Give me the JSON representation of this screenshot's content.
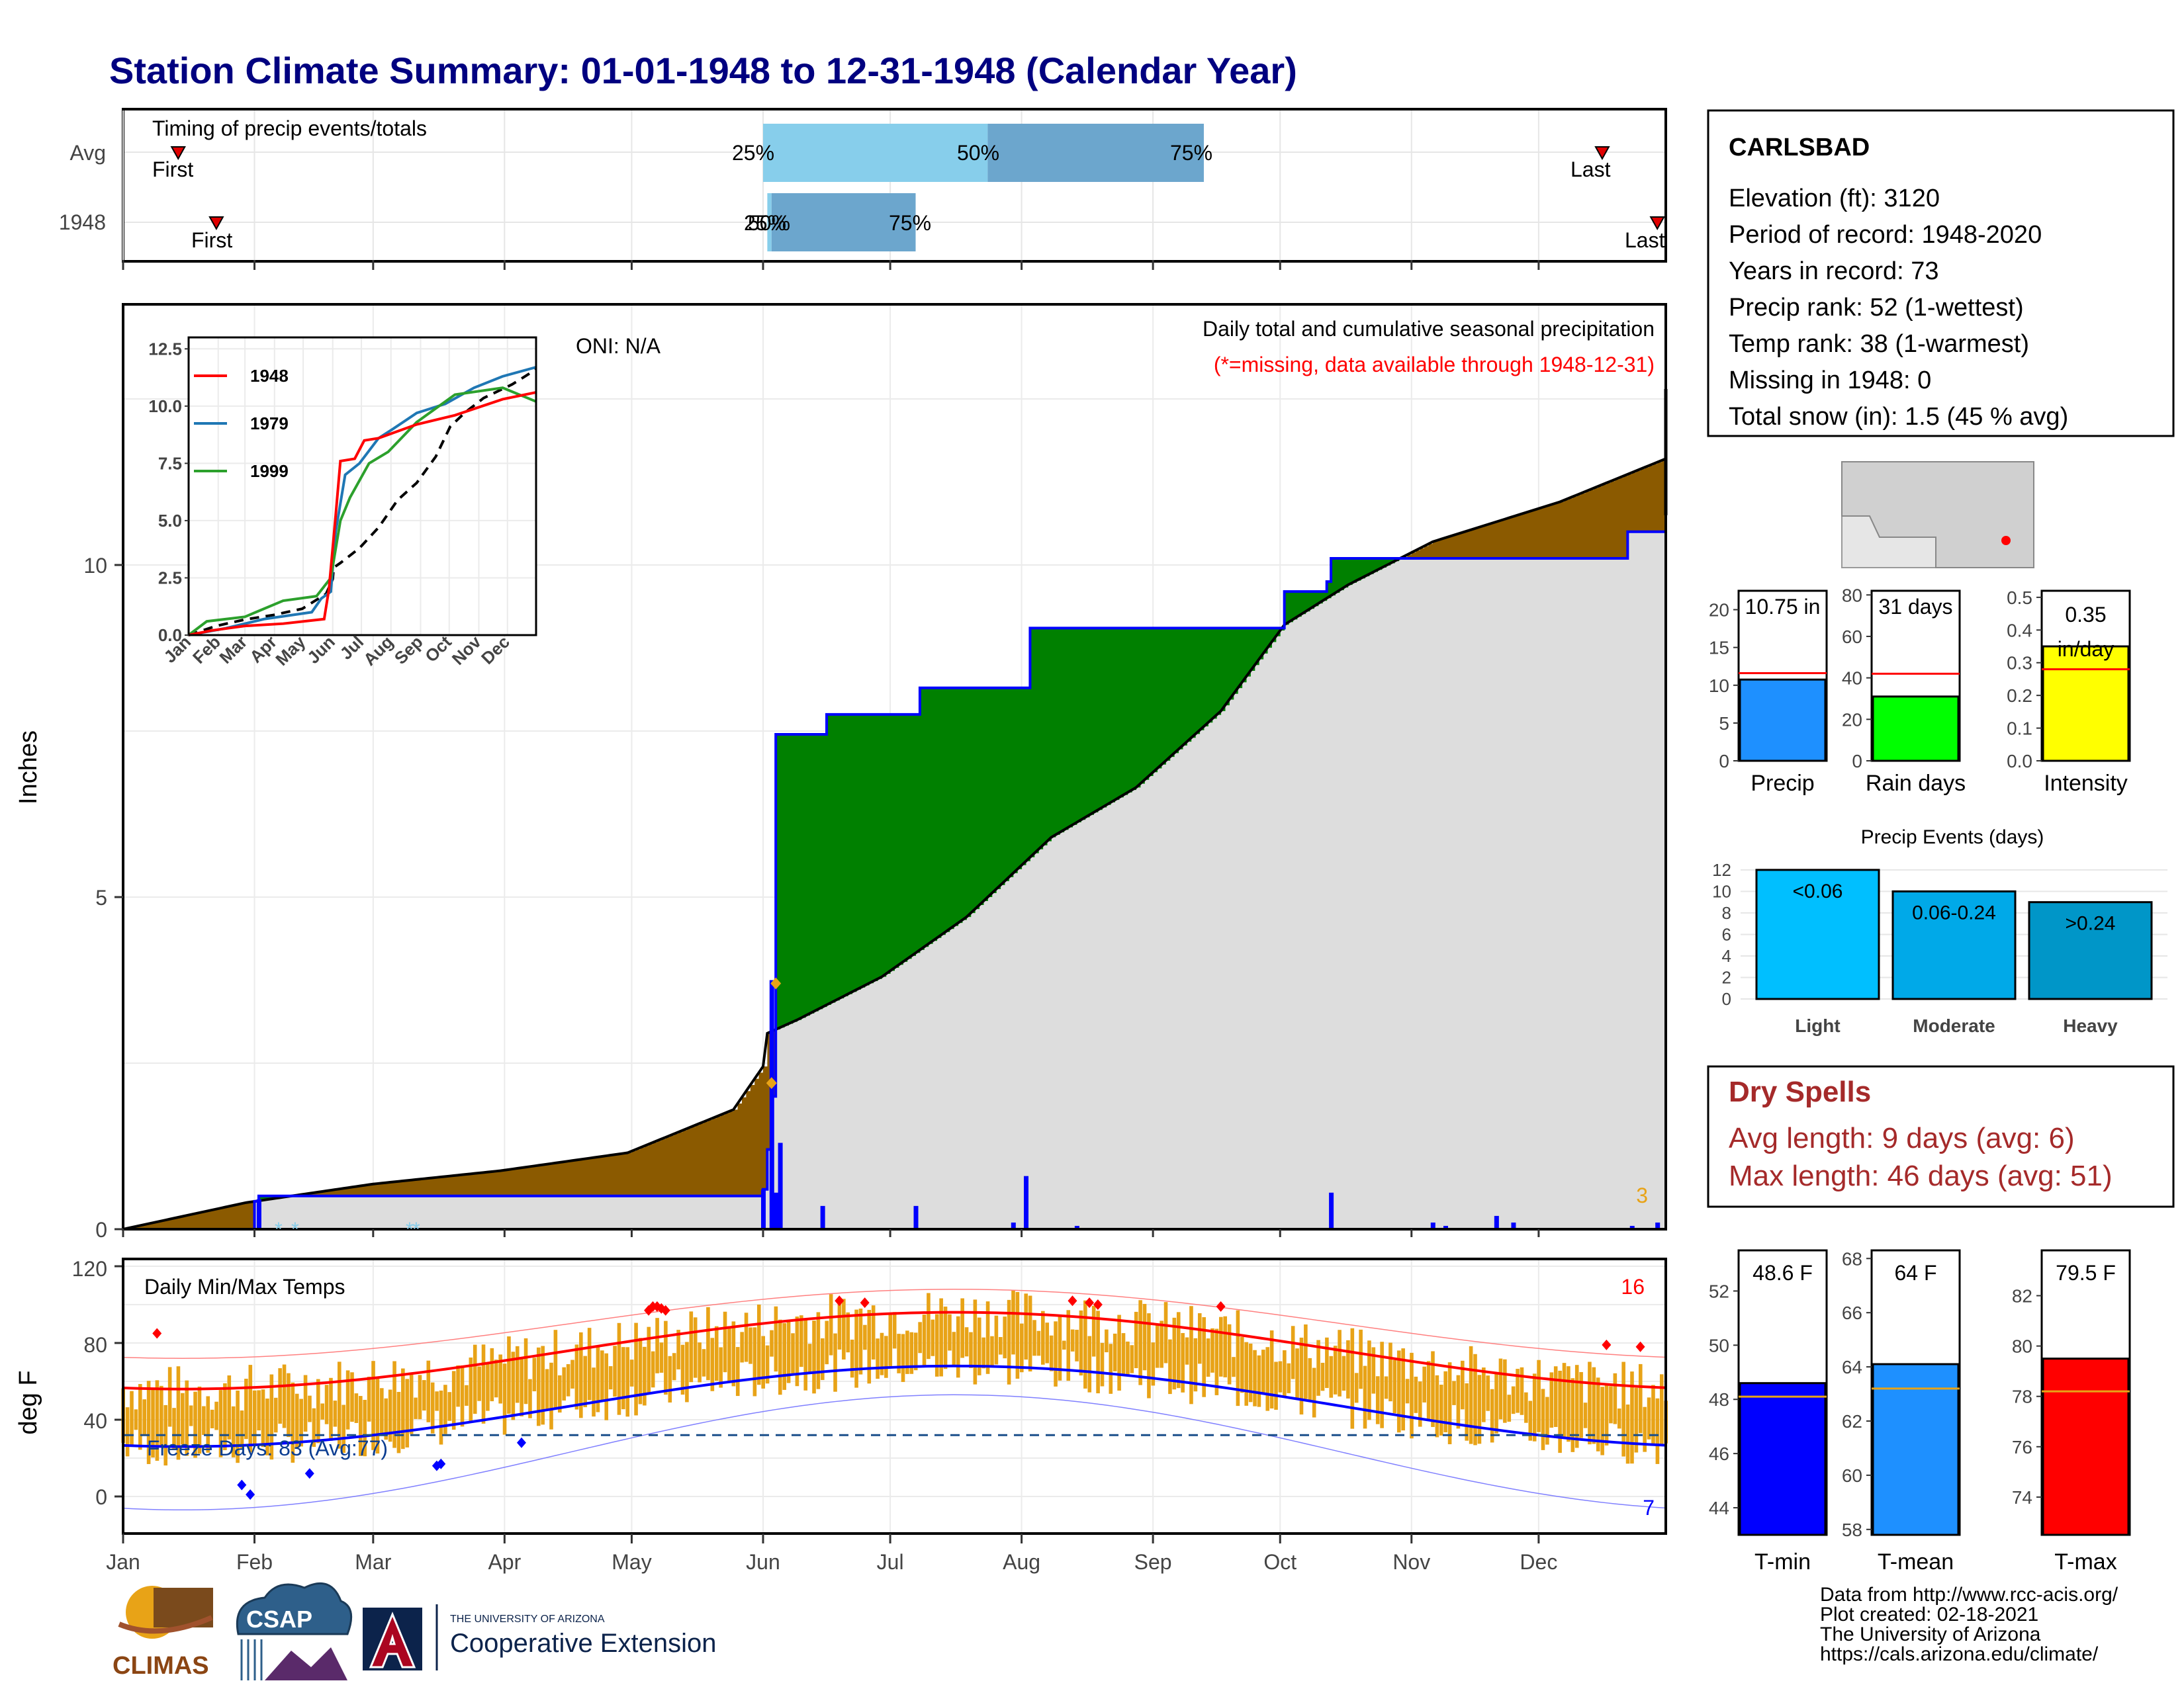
{
  "title": "Station Climate Summary: 01-01-1948 to 12-31-1948 (Calendar Year)",
  "colors": {
    "title": "#000080",
    "brown": "#8B5A00",
    "green": "#008000",
    "gray": "#DDDDDD",
    "blue": "#0000FF",
    "orange": "#E8A317",
    "red": "#FF0000",
    "tmean_bar": "#1E90FF",
    "precip_bar": "#1E90FF",
    "rain_bar": "#00FF00",
    "intensity_bar": "#FFFF00",
    "light": "#00BFFF",
    "moderate": "#00A9E8",
    "heavy": "#0096C8",
    "dryspell": "#A52A2A",
    "q_light": "#87CEEB",
    "q_dark": "#6CA6CD"
  },
  "timing": {
    "title": "Timing of precip events/totals",
    "rows": [
      {
        "label": "Avg",
        "first_label": "First",
        "first_doy": 14,
        "last_label": "Last",
        "last_doy": 350,
        "q25_label": "25%",
        "q50_label": "50%",
        "q75_label": "75%",
        "q25_doy": 152,
        "q50_doy": 205,
        "q75_doy": 256
      },
      {
        "label": "1948",
        "first_label": "First",
        "first_doy": 23,
        "last_label": "Last",
        "last_doy": 363,
        "q25_label": "25%",
        "q50_label": "50%",
        "q75_label": "75%",
        "q25_doy": 153,
        "q50_doy": 154,
        "q75_doy": 188
      }
    ]
  },
  "precip_panel": {
    "ylabel": "Inches",
    "y_ticks": [
      "0",
      "5",
      "10"
    ],
    "oni_label": "ONI: N/A",
    "caption": "Daily total and cumulative seasonal precipitation",
    "missing_note": "(*=missing, data available through 1948-12-31)",
    "corner_count": "3"
  },
  "inset": {
    "y_ticks": [
      "0.0",
      "2.5",
      "5.0",
      "7.5",
      "10.0",
      "12.5"
    ],
    "x_ticks": [
      "Jan",
      "Feb",
      "Mar",
      "Apr",
      "May",
      "Jun",
      "Jul",
      "Aug",
      "Sep",
      "Oct",
      "Nov",
      "Dec"
    ],
    "legend": [
      {
        "name": "1948",
        "color": "#FF0000"
      },
      {
        "name": "1979",
        "color": "#1F77B4"
      },
      {
        "name": "1999",
        "color": "#2CA02C"
      }
    ]
  },
  "temp_panel": {
    "ylabel": "deg F",
    "title": "Daily Min/Max Temps",
    "y_ticks": [
      "0",
      "40",
      "80",
      "120"
    ],
    "freeze_label": "Freeze Days: 83 (Avg:77)",
    "record_high_count": "16",
    "record_low_count": "7"
  },
  "months": [
    "Jan",
    "Feb",
    "Mar",
    "Apr",
    "May",
    "Jun",
    "Jul",
    "Aug",
    "Sep",
    "Oct",
    "Nov",
    "Dec"
  ],
  "station": {
    "name": "CARLSBAD",
    "lines": [
      "Elevation (ft): 3120",
      "Period of record: 1948-2020",
      "Years in record: 73",
      "Precip rank: 52 (1-wettest)",
      "Temp rank: 38 (1-warmest)",
      "Missing in 1948: 0",
      "Total snow (in): 1.5 (45 % avg)"
    ]
  },
  "small_bars": [
    {
      "label": "Precip",
      "value_label": "10.75 in",
      "value": 10.75,
      "avg": 11.6,
      "ymax": 22.5,
      "ticks": [
        "0",
        "5",
        "10",
        "15",
        "20"
      ],
      "tick_vals": [
        0,
        5,
        10,
        15,
        20
      ],
      "color": "#1E90FF"
    },
    {
      "label": "Rain days",
      "value_label": "31 days",
      "value": 31,
      "avg": 42,
      "ymax": 82,
      "ticks": [
        "0",
        "20",
        "40",
        "60",
        "80"
      ],
      "tick_vals": [
        0,
        20,
        40,
        60,
        80
      ],
      "color": "#00FF00"
    },
    {
      "label": "Intensity",
      "value_label": "0.35 in/day",
      "value": 0.35,
      "avg": 0.28,
      "ymax": 0.52,
      "ticks": [
        "0.0",
        "0.1",
        "0.2",
        "0.3",
        "0.4",
        "0.5"
      ],
      "tick_vals": [
        0,
        0.1,
        0.2,
        0.3,
        0.4,
        0.5
      ],
      "color": "#FFFF00"
    }
  ],
  "events": {
    "title": "Precip Events (days)",
    "ticks": [
      "0",
      "2",
      "4",
      "6",
      "8",
      "10",
      "12"
    ],
    "bars": [
      {
        "label": "Light",
        "range": "<0.06",
        "value": 12,
        "color": "#00BFFF"
      },
      {
        "label": "Moderate",
        "range": "0.06-0.24",
        "value": 10,
        "color": "#00A9E8"
      },
      {
        "label": "Heavy",
        "range": ">0.24",
        "value": 9,
        "color": "#0096C8"
      }
    ]
  },
  "dry_spells": {
    "title": "Dry Spells",
    "avg_line": "Avg length: 9 days (avg: 6)",
    "max_line": "Max length: 46 days (avg: 51)"
  },
  "temp_bars": [
    {
      "label": "T-min",
      "value_label": "48.6 F",
      "value": 48.6,
      "avg": 48.1,
      "ymin": 43,
      "ymax": 53.5,
      "ticks": [
        "44",
        "46",
        "48",
        "50",
        "52"
      ],
      "tick_vals": [
        44,
        46,
        48,
        50,
        52
      ],
      "color": "#0000FF"
    },
    {
      "label": "T-mean",
      "value_label": "64 F",
      "value": 64.1,
      "avg": 63.2,
      "ymin": 57.8,
      "ymax": 68.3,
      "ticks": [
        "58",
        "60",
        "62",
        "64",
        "66",
        "68"
      ],
      "tick_vals": [
        58,
        60,
        62,
        64,
        66,
        68
      ],
      "color": "#1E90FF"
    },
    {
      "label": "T-max",
      "value_label": "79.5 F",
      "value": 79.5,
      "avg": 78.2,
      "ymin": 72.5,
      "ymax": 83.8,
      "ticks": [
        "74",
        "76",
        "78",
        "80",
        "82"
      ],
      "tick_vals": [
        74,
        76,
        78,
        80,
        82
      ],
      "color": "#FF0000"
    }
  ],
  "logos": {
    "climas": "CLIMAS",
    "csap": "CSAP",
    "ua_small": "THE UNIVERSITY OF ARIZONA",
    "coop": "Cooperative Extension"
  },
  "footer": [
    "Data from http://www.rcc-acis.org/",
    "Plot created: 02-18-2021",
    "The University of Arizona",
    "https://cals.arizona.edu/climate/"
  ],
  "chart_data": {
    "type": "area",
    "title": "Station Climate Summary: 01-01-1948 to 12-31-1948 (Calendar Year)",
    "xlabel": "",
    "ylabel": "Inches",
    "ylim": [
      0,
      12.5
    ],
    "x_ticks": [
      "Jan",
      "Feb",
      "Mar",
      "Apr",
      "May",
      "Jun",
      "Jul",
      "Aug",
      "Sep",
      "Oct",
      "Nov",
      "Dec"
    ],
    "series": [
      {
        "name": "cumulative 1948",
        "points": [
          [
            1,
            0
          ],
          [
            32,
            0.42
          ],
          [
            33,
            0.5
          ],
          [
            152,
            0.6
          ],
          [
            153,
            1.2
          ],
          [
            154,
            2.0
          ],
          [
            155,
            7.45
          ],
          [
            166,
            7.45
          ],
          [
            167,
            7.75
          ],
          [
            188,
            7.75
          ],
          [
            189,
            8.15
          ],
          [
            214,
            8.15
          ],
          [
            215,
            9.05
          ],
          [
            274,
            9.05
          ],
          [
            275,
            9.6
          ],
          [
            285,
            9.75
          ],
          [
            286,
            10.1
          ],
          [
            355,
            10.1
          ],
          [
            356,
            10.5
          ],
          [
            365,
            10.75
          ]
        ]
      },
      {
        "name": "cumulative average",
        "points": [
          [
            1,
            0
          ],
          [
            30,
            0.4
          ],
          [
            60,
            0.68
          ],
          [
            90,
            0.88
          ],
          [
            120,
            1.15
          ],
          [
            145,
            1.8
          ],
          [
            152,
            2.45
          ],
          [
            153,
            2.95
          ],
          [
            160,
            3.15
          ],
          [
            180,
            3.8
          ],
          [
            200,
            4.7
          ],
          [
            220,
            5.9
          ],
          [
            240,
            6.65
          ],
          [
            260,
            7.8
          ],
          [
            275,
            9.1
          ],
          [
            290,
            9.7
          ],
          [
            310,
            10.35
          ],
          [
            340,
            10.95
          ],
          [
            365,
            11.6
          ]
        ]
      }
    ]
  }
}
